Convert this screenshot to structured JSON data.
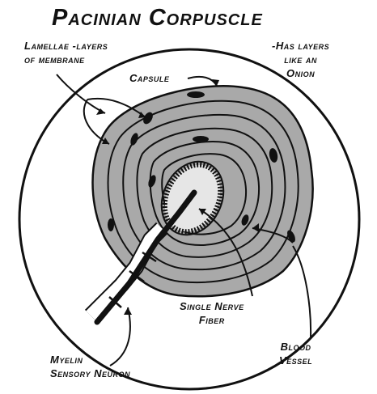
{
  "title": "Pacinian Corpuscle",
  "labels": {
    "lamellae_line1": "Lamellae -layers",
    "lamellae_line2": "of membrane",
    "onion_line1": "-Has layers",
    "onion_line2": "like an",
    "onion_line3": "Onion",
    "capsule": "Capsule",
    "nerve_line1": "Single Nerve",
    "nerve_line2": "Fiber",
    "blood_line1": "Blood",
    "blood_line2": "Vessel",
    "myelin_line1": "Myelin",
    "myelin_line2": "Sensory Neuron"
  },
  "colors": {
    "ink": "#111111",
    "tissue": "#a9a9a9",
    "tissue_light": "#c8c8c8",
    "core": "#e6e6e6",
    "background": "#ffffff"
  }
}
